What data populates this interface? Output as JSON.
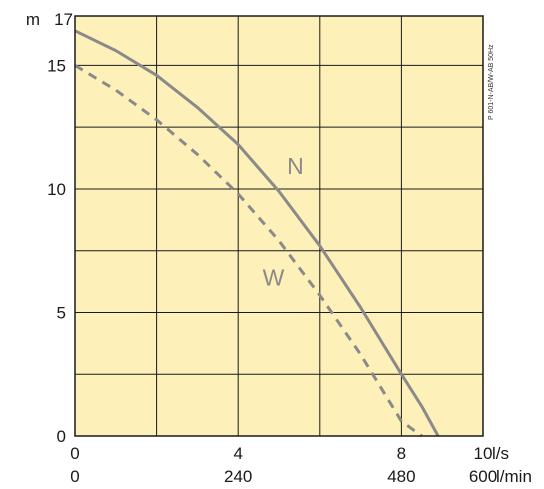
{
  "chart_data": {
    "type": "line",
    "x_primary": {
      "unit": "l/s",
      "range": [
        0,
        10
      ],
      "ticks": [
        0,
        4,
        8,
        10
      ],
      "tick_labels": [
        "0",
        "4",
        "8",
        "10"
      ]
    },
    "x_secondary": {
      "unit": "l/min",
      "ticks": [
        0,
        240,
        480,
        600
      ],
      "tick_labels": [
        "0",
        "240",
        "480",
        "600"
      ]
    },
    "y": {
      "unit": "m",
      "range": [
        0,
        17
      ],
      "ticks": [
        0,
        5,
        10,
        15,
        17
      ],
      "tick_labels": [
        "0",
        "5",
        "10",
        "15",
        "17"
      ]
    },
    "grid": true,
    "background_color": "#fdf0b8",
    "curve_color": "#8a8a8a",
    "series": [
      {
        "name": "N",
        "style": "solid",
        "x": [
          0,
          1,
          2,
          3,
          4,
          5,
          6,
          7,
          8,
          8.5,
          8.9
        ],
        "y": [
          16.4,
          15.6,
          14.6,
          13.3,
          11.8,
          9.9,
          7.7,
          5.2,
          2.5,
          1.2,
          0
        ]
      },
      {
        "name": "W",
        "style": "dashed",
        "x": [
          0,
          1,
          2,
          3,
          4,
          5,
          6,
          7,
          8,
          8.5
        ],
        "y": [
          15.0,
          14.0,
          12.8,
          11.4,
          9.8,
          7.9,
          5.7,
          3.3,
          0.6,
          0
        ]
      }
    ],
    "annotation": "P 601-N-AB/W-AB 50Hz"
  }
}
